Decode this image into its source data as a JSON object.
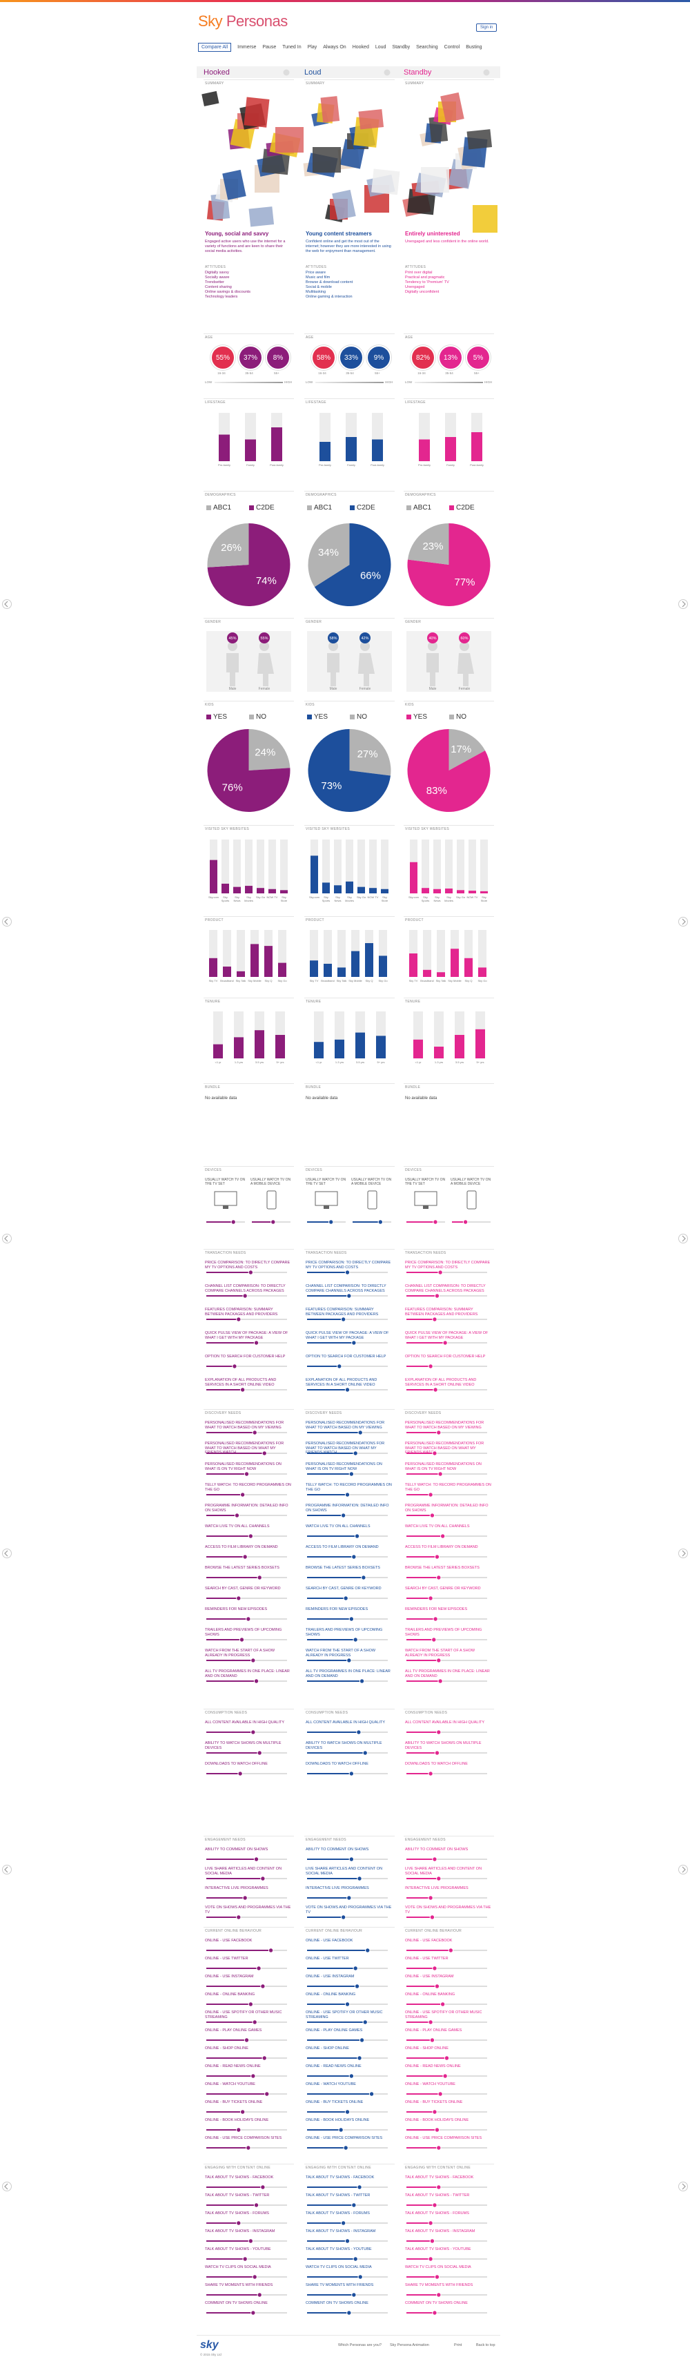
{
  "header": {
    "logo_sky": "Sky",
    "logo_personas": "Personas",
    "sign_in": "Sign in"
  },
  "nav": [
    "Compare All",
    "Immerse",
    "Pause",
    "Tuned In",
    "Play",
    "Always On",
    "Hooked",
    "Loud",
    "Standby",
    "Searching",
    "Control",
    "Busting"
  ],
  "sections": {
    "summary": {
      "title": "SUMMARY",
      "attitudes_label": "ATTITUDES"
    },
    "age": {
      "title": "AGE",
      "categories": [
        "16-34",
        "35-54",
        "55+"
      ],
      "low": "LOW",
      "high": "HIGH",
      "highlight_color": "#e2304f"
    },
    "lifestage": {
      "title": "LIFESTAGE",
      "categories": [
        "Pre-family",
        "Family",
        "Post-family"
      ]
    },
    "demographics": {
      "title": "DEMOGRAPHICS",
      "categories": [
        "ABC1",
        "C2DE"
      ]
    },
    "gender": {
      "title": "GENDER",
      "categories": [
        "Male",
        "Female"
      ]
    },
    "kids": {
      "title": "KIDS",
      "categories": [
        "YES",
        "NO"
      ]
    },
    "visited": {
      "title": "VISITED SKY WEBSITES",
      "categories": [
        "Sky.com",
        "Sky Sports",
        "Sky News",
        "Sky Movies",
        "Sky Go",
        "NOW TV",
        "Sky Store"
      ]
    },
    "product": {
      "title": "PRODUCT",
      "categories": [
        "Sky TV",
        "Broadband",
        "Sky Talk",
        "Sky Mobile",
        "Sky Q",
        "Sky Go"
      ]
    },
    "tenure": {
      "title": "TENURE",
      "categories": [
        "<1 yr",
        "1-3 yrs",
        "3-5 yrs",
        "5+ yrs"
      ]
    },
    "bundle": {
      "title": "BUNDLE"
    },
    "devices": {
      "title": "DEVICES",
      "labels": [
        "Usually watch TV on the TV set",
        "Usually watch TV on a mobile device"
      ]
    },
    "transaction": {
      "title": "TRANSACTION NEEDS",
      "items": [
        "Price comparison: to directly compare my TV options and costs",
        "Channel list comparison: to directly compare channels across packages",
        "Features comparison: summary between packages and providers",
        "Quick pulse view of package: a view of what I get with my package",
        "Option to search for customer help",
        "Explanation of all products and services in a short online video"
      ]
    },
    "discovery": {
      "title": "DISCOVERY NEEDS",
      "items": [
        "Personalised recommendations for what to watch based on my viewing",
        "Personalised recommendations for what to watch based on what my friends watch",
        "Personalised recommendations on what is on TV right now",
        "Telly watch: to record programmes on the go",
        "Programme information: detailed info on shows",
        "Watch live TV on all channels",
        "Access to film library on demand",
        "Browse the latest series boxsets",
        "Search by cast, genre or keyword",
        "Reminders for new episodes",
        "Trailers and previews of upcoming shows",
        "Watch from the start of a show already in progress",
        "All TV programmes in one place: linear and on demand"
      ]
    },
    "consumption": {
      "title": "CONSUMPTION NEEDS",
      "items": [
        "All content available in high quality",
        "Ability to watch shows on multiple devices",
        "Downloads to watch offline"
      ]
    },
    "engagement": {
      "title": "ENGAGEMENT NEEDS",
      "items": [
        "Ability to comment on shows",
        "Live share articles and content on social media",
        "Interactive live programmes",
        "Vote on shows and programmes via the TV"
      ]
    },
    "online": {
      "title": "CURRENT ONLINE BEHAVIOUR",
      "items": [
        "Online - use Facebook",
        "Online - use Twitter",
        "Online - use Instagram",
        "Online - online banking",
        "Online - use Spotify or other music streaming",
        "Online - play online games",
        "Online - shop online",
        "Online - read news online",
        "Online - watch YouTube",
        "Online - buy tickets online",
        "Online - book holidays online",
        "Online - use price comparison sites"
      ]
    },
    "content": {
      "title": "ENGAGING WITH CONTENT ONLINE",
      "items": [
        "Talk about TV shows - Facebook",
        "Talk about TV shows - Twitter",
        "Talk about TV shows - forums",
        "Talk about TV shows - Instagram",
        "Talk about TV shows - YouTube",
        "Watch TV clips on social media",
        "Share TV moments with friends",
        "Comment on TV shows online"
      ]
    }
  },
  "personas": [
    {
      "name": "Hooked",
      "color": "#8c1d7a",
      "summary": {
        "title": "Young, social and savvy",
        "description": "Engaged active users who use the internet for a variety of functions and are keen to share their social media activities.",
        "attitudes": [
          "Digitally savvy",
          "Socially aware",
          "Trendsetter",
          "Content sharing",
          "Online savings & discounts",
          "Technology leaders"
        ]
      },
      "age": {
        "values": [
          55,
          37,
          8
        ],
        "value_labels": [
          "55%",
          "37%",
          "8%"
        ]
      },
      "lifestage": [
        55,
        45,
        70
      ],
      "demographics": {
        "values": [
          26,
          74
        ],
        "value_labels": [
          "26%",
          "74%"
        ]
      },
      "gender": {
        "values": [
          45,
          55
        ],
        "value_labels": [
          "45%",
          "55%"
        ]
      },
      "kids": {
        "values": [
          76,
          24
        ],
        "value_labels": [
          "76%",
          "24%"
        ]
      },
      "visited": [
        62,
        18,
        12,
        14,
        10,
        8,
        6
      ],
      "product": [
        40,
        22,
        12,
        70,
        66,
        30
      ],
      "tenure": [
        30,
        45,
        60,
        50
      ],
      "bundle": "No available data",
      "devices": [
        70,
        55
      ],
      "transaction": [
        55,
        48,
        40,
        62,
        35,
        45
      ],
      "discovery": [
        60,
        72,
        50,
        45,
        38,
        55,
        48,
        66,
        40,
        52,
        44,
        58,
        62
      ],
      "consumption": [
        58,
        66,
        42
      ],
      "engagement": [
        62,
        70,
        48,
        40
      ],
      "online": [
        80,
        65,
        70,
        55,
        60,
        50,
        72,
        58,
        75,
        45,
        40,
        52
      ],
      "content": [
        70,
        62,
        40,
        55,
        48,
        60,
        66,
        58
      ]
    },
    {
      "name": "Loud",
      "color": "#1d4f9c",
      "summary": {
        "title": "Young content streamers",
        "description": "Confident online and get the most out of the internet; however they are more interested in using the web for enjoyment than management.",
        "attitudes": [
          "Price aware",
          "Music and film",
          "Browse & download content",
          "Social & mobile",
          "Multitasking",
          "Online gaming & interaction"
        ]
      },
      "age": {
        "values": [
          58,
          33,
          9
        ],
        "value_labels": [
          "58%",
          "33%",
          "9%"
        ]
      },
      "lifestage": [
        40,
        50,
        45
      ],
      "demographics": {
        "values": [
          34,
          66
        ],
        "value_labels": [
          "34%",
          "66%"
        ]
      },
      "gender": {
        "values": [
          58,
          42
        ],
        "value_labels": [
          "58%",
          "42%"
        ]
      },
      "kids": {
        "values": [
          73,
          27
        ],
        "value_labels": [
          "73%",
          "27%"
        ]
      },
      "visited": [
        70,
        20,
        15,
        22,
        12,
        10,
        8
      ],
      "product": [
        35,
        28,
        20,
        55,
        72,
        45
      ],
      "tenure": [
        35,
        40,
        55,
        48
      ],
      "bundle": "No available data",
      "devices": [
        62,
        72
      ],
      "transaction": [
        50,
        52,
        45,
        58,
        40,
        50
      ],
      "discovery": [
        66,
        60,
        55,
        50,
        45,
        62,
        58,
        70,
        48,
        55,
        60,
        52,
        68
      ],
      "consumption": [
        64,
        72,
        55
      ],
      "engagement": [
        55,
        65,
        52,
        45
      ],
      "online": [
        75,
        60,
        62,
        50,
        72,
        68,
        65,
        55,
        80,
        50,
        42,
        48
      ],
      "content": [
        65,
        58,
        45,
        50,
        60,
        66,
        58,
        52
      ]
    },
    {
      "name": "Standby",
      "color": "#e3268f",
      "summary": {
        "title": "Entirely uninterested",
        "description": "Unengaged and less confident in the online world.",
        "attitudes": [
          "Print over digital",
          "Practical and pragmatic",
          "Tendency to 'Premium' TV",
          "Unengaged",
          "Digitally unconfident"
        ]
      },
      "age": {
        "values": [
          82,
          13,
          5
        ],
        "value_labels": [
          "82%",
          "13%",
          "5%"
        ]
      },
      "lifestage": [
        45,
        50,
        60
      ],
      "demographics": {
        "values": [
          23,
          77
        ],
        "value_labels": [
          "23%",
          "77%"
        ]
      },
      "gender": {
        "values": [
          40,
          60
        ],
        "value_labels": [
          "40%",
          "60%"
        ]
      },
      "kids": {
        "values": [
          83,
          17
        ],
        "value_labels": [
          "83%",
          "17%"
        ]
      },
      "visited": [
        58,
        10,
        8,
        9,
        6,
        5,
        4
      ],
      "product": [
        50,
        15,
        10,
        60,
        40,
        20
      ],
      "tenure": [
        40,
        25,
        50,
        62
      ],
      "bundle": "No available data",
      "devices": [
        75,
        35
      ],
      "transaction": [
        42,
        38,
        35,
        48,
        30,
        36
      ],
      "discovery": [
        40,
        35,
        42,
        30,
        32,
        45,
        38,
        40,
        30,
        36,
        34,
        40,
        42
      ],
      "consumption": [
        40,
        38,
        30
      ],
      "engagement": [
        35,
        40,
        30,
        32
      ],
      "online": [
        55,
        35,
        38,
        45,
        30,
        32,
        50,
        48,
        42,
        35,
        38,
        40
      ],
      "content": [
        40,
        35,
        30,
        32,
        30,
        38,
        40,
        35
      ]
    }
  ],
  "footer": {
    "logo": "sky",
    "copyright": "© 2015 Sky Ltd",
    "links": [
      "Which Personas are you?",
      "Sky Persona Animation",
      "Print",
      "Back to top"
    ]
  }
}
